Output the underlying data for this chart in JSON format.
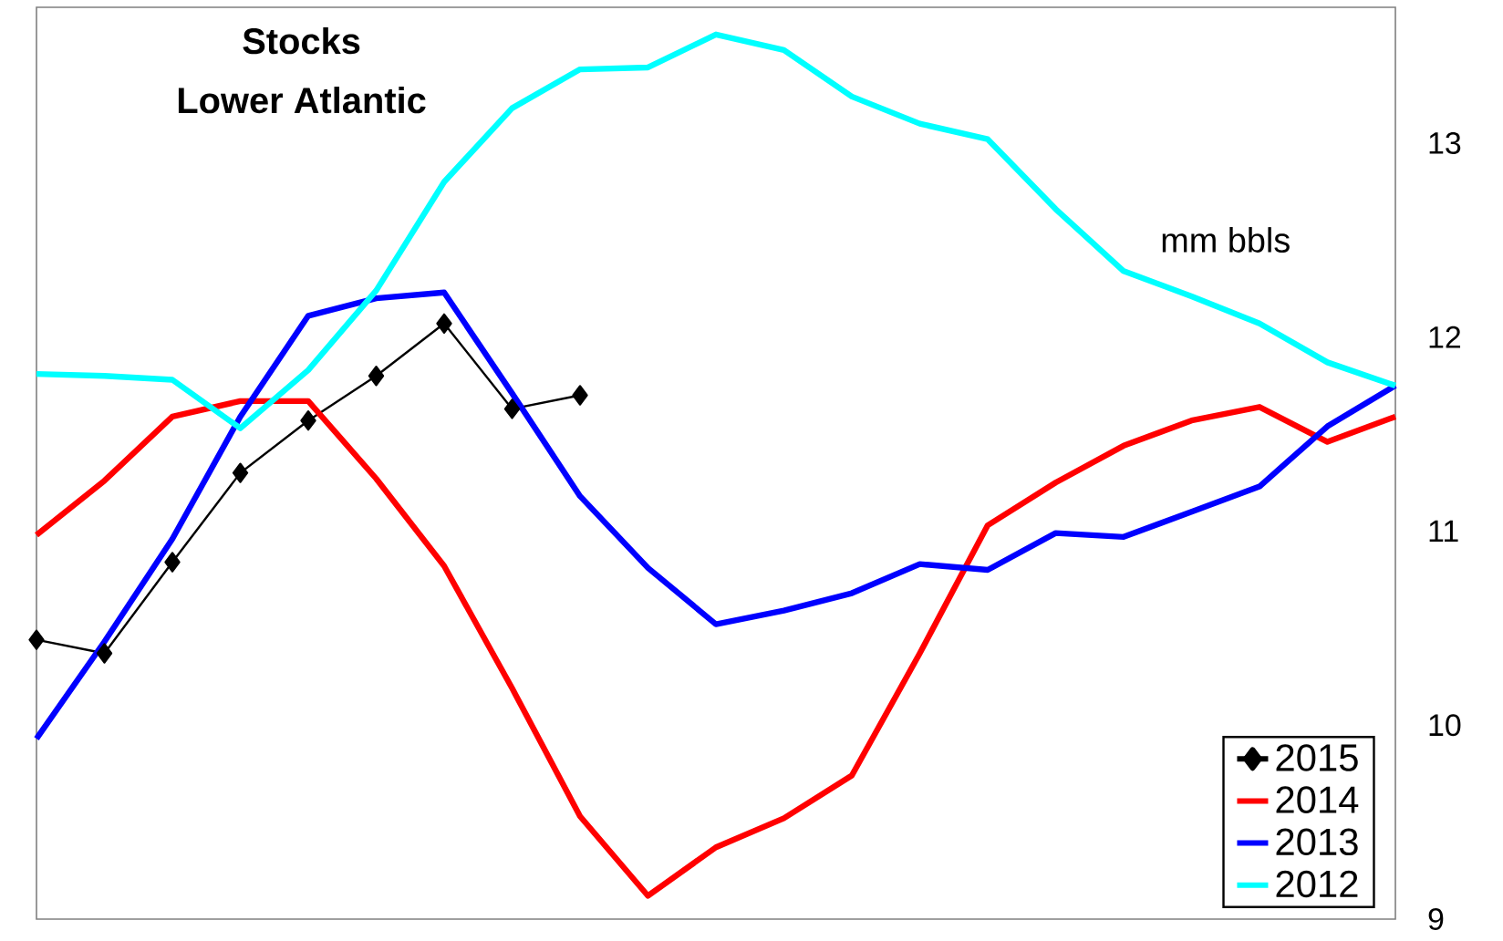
{
  "chart_data": {
    "type": "line",
    "title": "Stocks",
    "subtitle": "Lower Atlantic",
    "annotations": [
      "mm bbls"
    ],
    "categories": [
      null,
      null,
      null,
      null,
      null,
      null,
      null,
      null,
      null,
      null,
      null,
      null,
      null,
      null,
      null,
      null,
      null,
      null,
      null,
      null,
      null
    ],
    "series": [
      {
        "name": "2015",
        "color": "#000000",
        "marker": "diamond",
        "values": [
          10.44,
          10.37,
          10.84,
          11.3,
          11.57,
          11.8,
          12.07,
          11.63,
          11.7,
          null,
          null,
          null,
          null,
          null,
          null,
          null,
          null,
          null,
          null,
          null,
          null
        ]
      },
      {
        "name": "2014",
        "color": "#ff0000",
        "values": [
          10.98,
          11.26,
          11.59,
          11.67,
          11.67,
          11.27,
          10.82,
          10.19,
          9.53,
          9.12,
          9.37,
          9.52,
          9.74,
          10.37,
          11.03,
          11.25,
          11.44,
          11.57,
          11.64,
          11.46,
          11.59
        ]
      },
      {
        "name": "2013",
        "color": "#0000ff",
        "values": [
          9.93,
          10.43,
          10.96,
          11.59,
          12.11,
          12.2,
          12.23,
          11.71,
          11.18,
          10.81,
          10.52,
          10.59,
          10.68,
          10.83,
          10.8,
          10.99,
          10.97,
          11.1,
          11.23,
          11.54,
          11.75
        ]
      },
      {
        "name": "2012",
        "color": "#00ffff",
        "values": [
          11.81,
          11.8,
          11.78,
          11.53,
          11.83,
          12.24,
          12.8,
          13.18,
          13.38,
          13.39,
          13.56,
          13.48,
          13.24,
          13.1,
          13.02,
          12.66,
          12.34,
          12.21,
          12.07,
          11.87,
          11.75
        ]
      }
    ],
    "ylim": [
      9,
      13.7
    ],
    "yticks": [
      9,
      10,
      11,
      12,
      13
    ],
    "tick_labels": "y",
    "legend": "bottom right"
  }
}
